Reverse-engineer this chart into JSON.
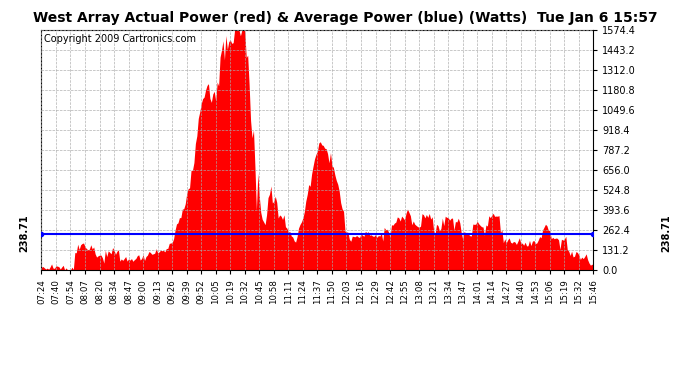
{
  "title": "West Array Actual Power (red) & Average Power (blue) (Watts)  Tue Jan 6 15:57",
  "copyright": "Copyright 2009 Cartronics.com",
  "average_value": 238.71,
  "ylim": [
    0.0,
    1574.4
  ],
  "yticks": [
    0.0,
    131.2,
    262.4,
    393.6,
    524.8,
    656.0,
    787.2,
    918.4,
    1049.6,
    1180.8,
    1312.0,
    1443.2,
    1574.4
  ],
  "fill_color": "red",
  "avg_line_color": "blue",
  "bg_color": "white",
  "grid_color": "#aaaaaa",
  "title_fontsize": 10,
  "copyright_fontsize": 7,
  "x_tick_labels": [
    "07:24",
    "07:40",
    "07:54",
    "08:07",
    "08:20",
    "08:34",
    "08:47",
    "09:00",
    "09:13",
    "09:26",
    "09:39",
    "09:52",
    "10:05",
    "10:19",
    "10:32",
    "10:45",
    "10:58",
    "11:11",
    "11:24",
    "11:37",
    "11:50",
    "12:03",
    "12:16",
    "12:29",
    "12:42",
    "12:55",
    "13:08",
    "13:21",
    "13:34",
    "13:47",
    "14:01",
    "14:14",
    "14:27",
    "14:40",
    "14:53",
    "15:06",
    "15:19",
    "15:32",
    "15:46"
  ]
}
